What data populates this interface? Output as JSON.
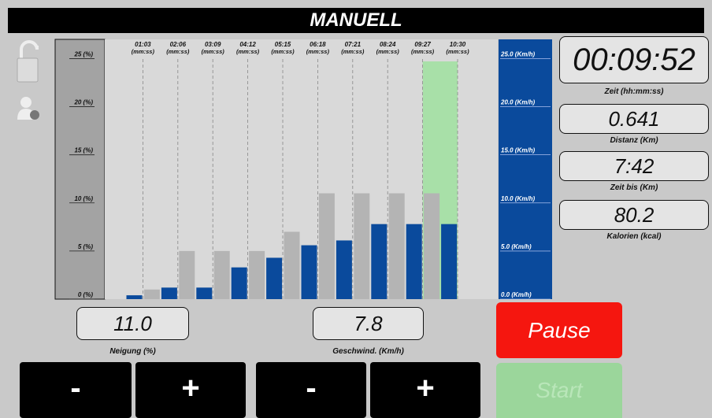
{
  "header": {
    "title": "MANUELL"
  },
  "chart_data": {
    "type": "bar",
    "categories": [
      "01:03",
      "02:06",
      "03:09",
      "04:12",
      "05:15",
      "06:18",
      "07:21",
      "08:24",
      "09:27",
      "10:30"
    ],
    "category_unit": "(mm:ss)",
    "series": [
      {
        "color": "#b4b4b4",
        "values": [
          0,
          1,
          5,
          5,
          5,
          7,
          11,
          11,
          11,
          11
        ]
      },
      {
        "color": "#0a4a9c",
        "axis": "y2",
        "values": [
          0.4,
          1.2,
          1.2,
          3.3,
          4.3,
          5.6,
          6.1,
          7.8,
          7.8,
          7.8
        ]
      }
    ],
    "highlight_index": 9,
    "highlight_color": "#a8e0a8",
    "ylim": [
      0,
      27
    ],
    "yticks": [
      {
        "value": 0,
        "label": "0 (%)"
      },
      {
        "value": 5,
        "label": "5 (%)"
      },
      {
        "value": 10,
        "label": "10 (%)"
      },
      {
        "value": 15,
        "label": "15 (%)"
      },
      {
        "value": 20,
        "label": "20 (%)"
      },
      {
        "value": 25,
        "label": "25 (%)"
      }
    ],
    "y2lim": [
      0,
      27
    ],
    "y2ticks": [
      {
        "value": 0,
        "label": "0.0 (Km/h)"
      },
      {
        "value": 5,
        "label": "5.0 (Km/h)"
      },
      {
        "value": 10,
        "label": "10.0 (Km/h)"
      },
      {
        "value": 15,
        "label": "15.0 (Km/h)"
      },
      {
        "value": 20,
        "label": "20.0 (Km/h)"
      },
      {
        "value": 25,
        "label": "25.0 (Km/h)"
      }
    ]
  },
  "displays": [
    {
      "value": "00:09:52",
      "label": "Zeit (hh:mm:ss)"
    },
    {
      "value": "0.641",
      "label": "Distanz (Km)"
    },
    {
      "value": "7:42",
      "label": "Zeit bis (Km)"
    },
    {
      "value": "80.2",
      "label": "Kalorien (kcal)"
    }
  ],
  "controls": {
    "incline": {
      "value": "11.0",
      "label": "Neigung (%)",
      "minus": "-",
      "plus": "+"
    },
    "speed": {
      "value": "7.8",
      "label": "Geschwind. (Km/h)",
      "minus": "-",
      "plus": "+"
    }
  },
  "buttons": {
    "pause": "Pause",
    "start": "Start"
  }
}
